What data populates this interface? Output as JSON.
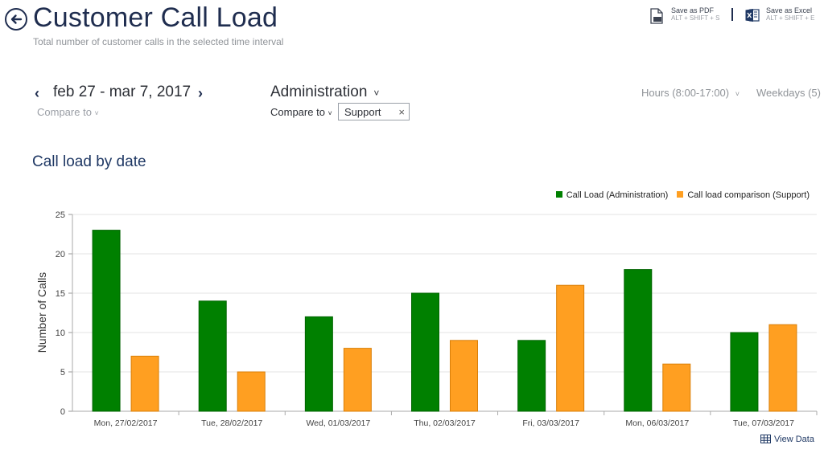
{
  "header": {
    "title": "Customer Call Load",
    "subtitle": "Total number of customer calls in the selected time interval"
  },
  "export": {
    "pdf_label": "Save as PDF",
    "pdf_shortcut": "ALT + SHIFT + S",
    "excel_label": "Save as Excel",
    "excel_shortcut": "ALT + SHIFT + E"
  },
  "filters": {
    "date_range": "feb 27 - mar 7, 2017",
    "compare_to_left": "Compare to",
    "department": "Administration",
    "compare_to_right": "Compare to",
    "compare_value": "Support",
    "hours": "Hours (8:00-17:00)",
    "weekdays": "Weekdays (5)"
  },
  "section": {
    "title": "Call load by date",
    "view_data": "View Data"
  },
  "colors": {
    "primary": "#008000",
    "comparison": "#ff9f21"
  },
  "chart_data": {
    "type": "bar",
    "ylabel": "Number of Calls",
    "ylim": [
      0,
      25
    ],
    "yticks": [
      0,
      5,
      10,
      15,
      20,
      25
    ],
    "categories": [
      "Mon, 27/02/2017",
      "Tue, 28/02/2017",
      "Wed, 01/03/2017",
      "Thu, 02/03/2017",
      "Fri, 03/03/2017",
      "Mon, 06/03/2017",
      "Tue, 07/03/2017"
    ],
    "series": [
      {
        "name": "Call Load (Administration)",
        "values": [
          23,
          14,
          12,
          15,
          9,
          18,
          10
        ]
      },
      {
        "name": "Call load comparison (Support)",
        "values": [
          7,
          5,
          8,
          9,
          16,
          6,
          11
        ]
      }
    ],
    "legend": "top-right",
    "grid": true
  }
}
